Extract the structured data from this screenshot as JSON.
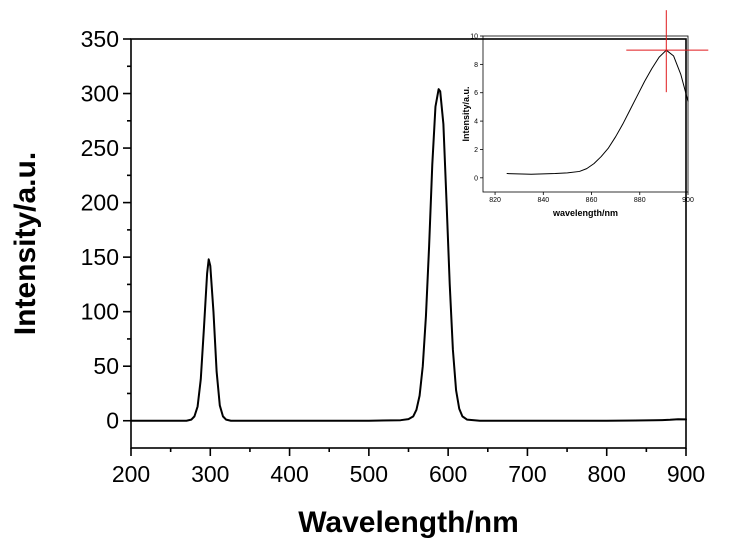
{
  "chart_data": [
    {
      "type": "line",
      "xlabel": "Wavelength/nm",
      "ylabel": "Intensity/a.u.",
      "xlim": [
        200,
        900
      ],
      "ylim": [
        -25,
        350
      ],
      "xticks": [
        200,
        300,
        400,
        500,
        600,
        700,
        800,
        900
      ],
      "yticks": [
        0,
        50,
        100,
        150,
        200,
        250,
        300,
        350
      ],
      "grid": false,
      "legend": "none",
      "series": [
        {
          "color": "#000000",
          "x": [
            200,
            270,
            276,
            280,
            284,
            288,
            292,
            296,
            298,
            300,
            304,
            308,
            312,
            316,
            320,
            326,
            340,
            400,
            500,
            540,
            550,
            556,
            560,
            564,
            568,
            572,
            576,
            580,
            584,
            588,
            590,
            594,
            598,
            602,
            606,
            610,
            614,
            618,
            624,
            640,
            700,
            800,
            860,
            870,
            880,
            890,
            900
          ],
          "y": [
            0,
            0,
            1,
            4,
            13,
            38,
            85,
            135,
            148,
            142,
            100,
            45,
            14,
            4,
            1,
            0,
            0,
            0,
            0,
            0.5,
            1.5,
            4,
            10,
            23,
            50,
            96,
            160,
            235,
            288,
            304,
            302,
            272,
            200,
            125,
            65,
            28,
            11,
            4,
            1,
            0,
            0,
            0,
            0.4,
            0.6,
            0.9,
            1.4,
            1.2
          ]
        }
      ]
    },
    {
      "type": "line",
      "xlabel": "wavelength/nm",
      "ylabel": "Intensity/a.u.",
      "xlim": [
        815,
        900
      ],
      "ylim": [
        -1,
        10
      ],
      "xticks": [
        820,
        840,
        860,
        880,
        900
      ],
      "yticks": [
        0,
        2,
        4,
        6,
        8,
        10
      ],
      "grid": false,
      "legend": "none",
      "annotation": "red crosshair marker at peak (~891 nm, ~9)",
      "series": [
        {
          "color": "#000000",
          "x": [
            825,
            835,
            845,
            850,
            855,
            858,
            861,
            864,
            867,
            870,
            873,
            876,
            879,
            882,
            885,
            888,
            891,
            894,
            897,
            900
          ],
          "y": [
            0.3,
            0.25,
            0.3,
            0.35,
            0.45,
            0.65,
            1.0,
            1.5,
            2.1,
            2.9,
            3.8,
            4.8,
            5.8,
            6.8,
            7.7,
            8.5,
            9.0,
            8.6,
            7.3,
            5.4
          ]
        }
      ]
    }
  ],
  "colors": {
    "crosshair": "#e0191c",
    "line": "#000000"
  }
}
